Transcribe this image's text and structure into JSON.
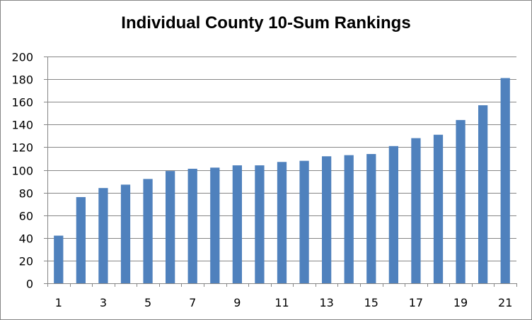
{
  "chart_data": {
    "type": "bar",
    "title": "Individual County 10-Sum Rankings",
    "xlabel": "",
    "ylabel": "",
    "categories": [
      "1",
      "2",
      "3",
      "4",
      "5",
      "6",
      "7",
      "8",
      "9",
      "10",
      "11",
      "12",
      "13",
      "14",
      "15",
      "16",
      "17",
      "18",
      "19",
      "20",
      "21"
    ],
    "x_tick_labels": [
      "1",
      "3",
      "5",
      "7",
      "9",
      "11",
      "13",
      "15",
      "17",
      "19",
      "21"
    ],
    "values": [
      42,
      76,
      84,
      87,
      92,
      99,
      101,
      102,
      104,
      104,
      107,
      108,
      112,
      113,
      114,
      121,
      128,
      131,
      144,
      157,
      181
    ],
    "ylim": [
      0,
      200
    ],
    "y_ticks": [
      0,
      20,
      40,
      60,
      80,
      100,
      120,
      140,
      160,
      180,
      200
    ],
    "grid": true,
    "legend": "none",
    "bar_color": "#4F81BD",
    "grid_color": "#868686"
  }
}
